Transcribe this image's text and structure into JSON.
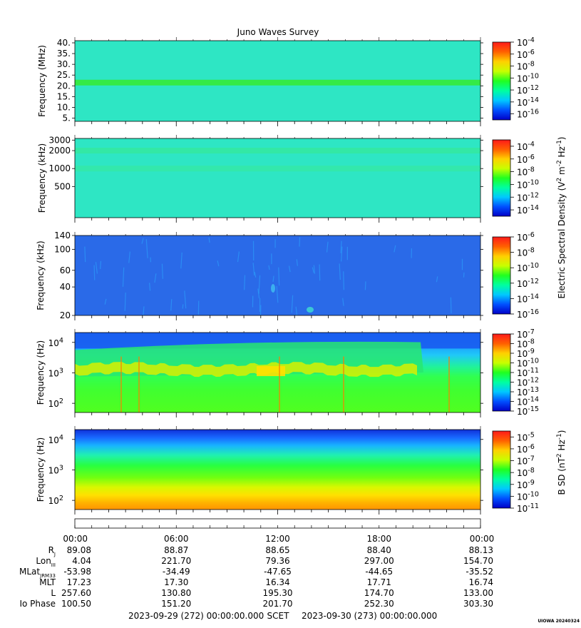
{
  "title": "Juno Waves Survey",
  "colors": {
    "panel_cyan": "#2ee6c4",
    "panel_blue": "#2a6ae8",
    "scale": [
      "#0000c8",
      "#0050ff",
      "#00c8ff",
      "#00ffa0",
      "#20ff20",
      "#c8ff00",
      "#ffd000",
      "#ff6000",
      "#ff1a1a"
    ]
  },
  "chart_data": [
    {
      "type": "heatmap",
      "name": "panel-hfr-high",
      "ylabel": "Frequency (MHz)",
      "yscale": "linear",
      "ylim": [
        3.5,
        41
      ],
      "yticks": [
        {
          "v": 5,
          "t": "5."
        },
        {
          "v": 10,
          "t": "10."
        },
        {
          "v": 15,
          "t": "15."
        },
        {
          "v": 20,
          "t": "20."
        },
        {
          "v": 25,
          "t": "25."
        },
        {
          "v": 30,
          "t": "30."
        },
        {
          "v": 35,
          "t": "35."
        },
        {
          "v": 40,
          "t": "40."
        }
      ],
      "colorbar": {
        "log_min": -17,
        "log_max": -4,
        "labels": [
          {
            "e": -4,
            "t": "-4"
          },
          {
            "e": -6,
            "t": "-6"
          },
          {
            "e": -8,
            "t": "-8"
          },
          {
            "e": -10,
            "t": "-10"
          },
          {
            "e": -12,
            "t": "-12"
          },
          {
            "e": -14,
            "t": "-14"
          },
          {
            "e": -16,
            "t": "-16"
          }
        ]
      },
      "features": [
        {
          "kind": "band",
          "at": 21.5,
          "color": "#35ea30"
        }
      ]
    },
    {
      "type": "heatmap",
      "name": "panel-hfr-low",
      "ylabel": "Frequency (kHz)",
      "yscale": "log",
      "ylim": [
        150,
        3200
      ],
      "yticks": [
        {
          "v": 500,
          "t": "500"
        },
        {
          "v": 1000,
          "t": "1000"
        },
        {
          "v": 2000,
          "t": "2000"
        },
        {
          "v": 3000,
          "t": "3000"
        }
      ],
      "colorbar": {
        "log_min": -15,
        "log_max": -3,
        "labels": [
          {
            "e": -4,
            "t": "-4"
          },
          {
            "e": -6,
            "t": "-6"
          },
          {
            "e": -8,
            "t": "-8"
          },
          {
            "e": -10,
            "t": "-10"
          },
          {
            "e": -12,
            "t": "-12"
          },
          {
            "e": -14,
            "t": "-14"
          }
        ]
      },
      "features": [
        {
          "kind": "band",
          "at": 2000,
          "color": "#34e8a0"
        },
        {
          "kind": "band",
          "at": 1000,
          "color": "#34e8a8"
        }
      ]
    },
    {
      "type": "heatmap",
      "name": "panel-lfr-high",
      "ylabel": "Frequency (kHz)",
      "yscale": "log",
      "ylim": [
        20,
        140
      ],
      "yticks": [
        {
          "v": 20,
          "t": "20"
        },
        {
          "v": 40,
          "t": "40"
        },
        {
          "v": 60,
          "t": "60"
        },
        {
          "v": 100,
          "t": "100"
        },
        {
          "v": 140,
          "t": "140"
        }
      ],
      "colorbar": {
        "log_min": -16,
        "log_max": -6,
        "labels": [
          {
            "e": -6,
            "t": "-6"
          },
          {
            "e": -8,
            "t": "-8"
          },
          {
            "e": -10,
            "t": "-10"
          },
          {
            "e": -12,
            "t": "-12"
          },
          {
            "e": -14,
            "t": "-14"
          },
          {
            "e": -16,
            "t": "-16"
          }
        ]
      },
      "features": [
        {
          "kind": "streaks",
          "color": "#2aa8ff"
        }
      ]
    },
    {
      "type": "heatmap",
      "name": "panel-lfr-low",
      "ylabel": "Frequency (Hz)",
      "yscale": "log",
      "ylim": [
        50,
        21000
      ],
      "yticks": [
        {
          "v": 100,
          "t": "10",
          "e": "2"
        },
        {
          "v": 1000,
          "t": "10",
          "e": "3"
        },
        {
          "v": 10000,
          "t": "10",
          "e": "4"
        }
      ],
      "colorbar": {
        "log_min": -15,
        "log_max": -7,
        "labels": [
          {
            "e": -7,
            "t": "-7"
          },
          {
            "e": -8,
            "t": "-8"
          },
          {
            "e": -9,
            "t": "-9"
          },
          {
            "e": -10,
            "t": "-10"
          },
          {
            "e": -11,
            "t": "-11"
          },
          {
            "e": -12,
            "t": "-12"
          },
          {
            "e": -13,
            "t": "-13"
          },
          {
            "e": -14,
            "t": "-14"
          },
          {
            "e": -15,
            "t": "-15"
          }
        ]
      },
      "features": [
        {
          "kind": "emission",
          "color": "#d8f000"
        }
      ]
    },
    {
      "type": "heatmap",
      "name": "panel-magnetic",
      "ylabel": "Frequency (Hz)",
      "yscale": "log",
      "ylim": [
        50,
        21000
      ],
      "yticks": [
        {
          "v": 100,
          "t": "10",
          "e": "2"
        },
        {
          "v": 1000,
          "t": "10",
          "e": "3"
        },
        {
          "v": 10000,
          "t": "10",
          "e": "4"
        }
      ],
      "colorbar": {
        "log_min": -11,
        "log_max": -4.5,
        "labels": [
          {
            "e": -5,
            "t": "-5"
          },
          {
            "e": -6,
            "t": "-6"
          },
          {
            "e": -7,
            "t": "-7"
          },
          {
            "e": -8,
            "t": "-8"
          },
          {
            "e": -9,
            "t": "-9"
          },
          {
            "e": -10,
            "t": "-10"
          },
          {
            "e": -11,
            "t": "-11"
          }
        ]
      },
      "features": [
        {
          "kind": "gradient"
        }
      ]
    }
  ],
  "colorbar_titles": {
    "electric": {
      "base": "Electric Spectral Density (V",
      "p1": "2",
      "mid1": " m",
      "p2": "-2",
      "mid2": " Hz",
      "p3": "-1",
      "end": ")"
    },
    "magnetic": {
      "base": "B SD (nT",
      "p1": "2",
      "mid1": " Hz",
      "p2": "-1",
      "end": ")"
    }
  },
  "time_axis": {
    "ticks": [
      "00:00",
      "06:00",
      "12:00",
      "18:00",
      "00:00"
    ],
    "rows": [
      {
        "label": "R",
        "sub": "J",
        "values": [
          "89.08",
          "88.87",
          "88.65",
          "88.40",
          "88.13"
        ]
      },
      {
        "label": "Lon",
        "sub": "III",
        "values": [
          "4.04",
          "221.70",
          "79.36",
          "297.00",
          "154.70"
        ]
      },
      {
        "label": "MLat",
        "sub": "JRM33",
        "values": [
          "-53.98",
          "-34.49",
          "-47.65",
          "-44.65",
          "-35.52"
        ]
      },
      {
        "label": "MLT",
        "sub": "",
        "values": [
          "17.23",
          "17.30",
          "16.34",
          "17.71",
          "16.74"
        ]
      },
      {
        "label": "L",
        "sub": "",
        "values": [
          "257.60",
          "130.80",
          "195.30",
          "174.70",
          "133.00"
        ]
      },
      {
        "label": "Io Phase",
        "sub": "",
        "values": [
          "100.50",
          "151.20",
          "201.70",
          "252.30",
          "303.30"
        ]
      }
    ]
  },
  "footer": {
    "start": "2023-09-29 (272) 00:00:00.000",
    "mid": "SCET",
    "end": "2023-09-30 (273) 00:00:00.000",
    "stamp": "UIOWA 20240324"
  },
  "ten": "10"
}
